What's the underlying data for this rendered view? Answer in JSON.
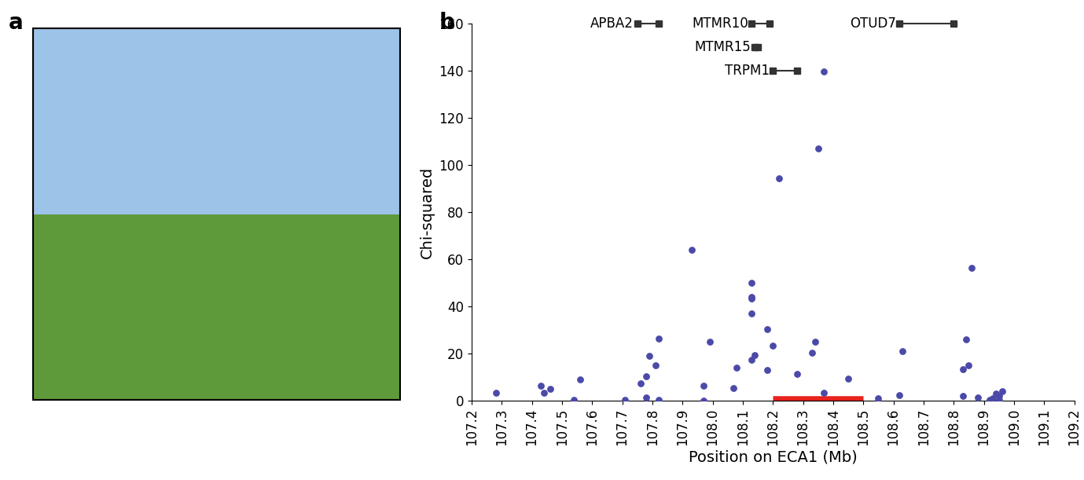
{
  "panels": [
    "a",
    "b"
  ],
  "chart_data": {
    "type": "scatter",
    "x_label": "Position on ECA1 (Mb)",
    "y_label": "Chi-squared",
    "color": "#4b4aa8",
    "marker": "o",
    "x": [
      107.28,
      107.43,
      107.44,
      107.46,
      107.54,
      107.56,
      107.71,
      107.76,
      107.78,
      107.78,
      107.79,
      107.81,
      107.82,
      107.82,
      107.93,
      107.97,
      107.97,
      107.99,
      108.07,
      108.08,
      108.13,
      108.13,
      108.13,
      108.13,
      108.13,
      108.14,
      108.18,
      108.18,
      108.2,
      108.22,
      108.28,
      108.33,
      108.34,
      108.35,
      108.37,
      108.37,
      108.45,
      108.55,
      108.62,
      108.63,
      108.83,
      108.83,
      108.84,
      108.85,
      108.86,
      108.88,
      108.92,
      108.93,
      108.94,
      108.95,
      108.96,
      108.95
    ],
    "values": [
      3.5,
      6.5,
      3.5,
      5,
      0.5,
      9,
      0.5,
      7.5,
      1.5,
      10.5,
      19,
      15,
      26.5,
      0.5,
      64,
      6.5,
      0,
      25,
      5.5,
      14,
      50,
      43.5,
      44,
      37,
      17.5,
      19.5,
      30.5,
      13,
      23.5,
      94.5,
      11.5,
      20.5,
      25,
      107,
      139.5,
      3.5,
      9.5,
      1,
      2.5,
      21,
      13.5,
      2,
      26,
      15,
      56.5,
      1.5,
      0.5,
      1,
      3,
      2,
      4,
      0.5
    ],
    "xlim": [
      107.2,
      109.2
    ],
    "xticks": [
      {
        "value": 107.2,
        "label": "107.2"
      },
      {
        "value": 107.3,
        "label": "107.3"
      },
      {
        "value": 107.4,
        "label": "107.4"
      },
      {
        "value": 107.5,
        "label": "107.5"
      },
      {
        "value": 107.6,
        "label": "107.6"
      },
      {
        "value": 107.7,
        "label": "107.7"
      },
      {
        "value": 107.8,
        "label": "107.8"
      },
      {
        "value": 107.9,
        "label": "107.9"
      },
      {
        "value": 108.0,
        "label": "108.0"
      },
      {
        "value": 108.1,
        "label": "108.1"
      },
      {
        "value": 108.2,
        "label": "108.2"
      },
      {
        "value": 108.3,
        "label": "108.3"
      },
      {
        "value": 108.4,
        "label": "108.4"
      },
      {
        "value": 108.5,
        "label": "108.5"
      },
      {
        "value": 108.6,
        "label": "108.6"
      },
      {
        "value": 108.7,
        "label": "108.7"
      },
      {
        "value": 108.8,
        "label": "108.8"
      },
      {
        "value": 108.9,
        "label": "108.9"
      },
      {
        "value": 109.0,
        "label": "109.0"
      },
      {
        "value": 109.1,
        "label": "109.1"
      },
      {
        "value": 109.2,
        "label": "109.2"
      }
    ],
    "ylim": [
      0,
      160
    ],
    "yticks": [
      0,
      20,
      40,
      60,
      80,
      100,
      120,
      140,
      160
    ],
    "grid": false,
    "genes": [
      {
        "name": "APBA2",
        "start": 107.75,
        "end": 107.82,
        "y": 160
      },
      {
        "name": "MTMR10",
        "start": 108.13,
        "end": 108.19,
        "y": 160
      },
      {
        "name": "MTMR15",
        "start": 108.14,
        "end": 108.15,
        "y": 150
      },
      {
        "name": "TRPM1",
        "start": 108.2,
        "end": 108.28,
        "y": 140
      },
      {
        "name": "OTUD7",
        "start": 108.62,
        "end": 108.8,
        "y": 160
      }
    ],
    "highlight": {
      "start": 108.2,
      "end": 108.5,
      "color": "#e8221c"
    }
  }
}
